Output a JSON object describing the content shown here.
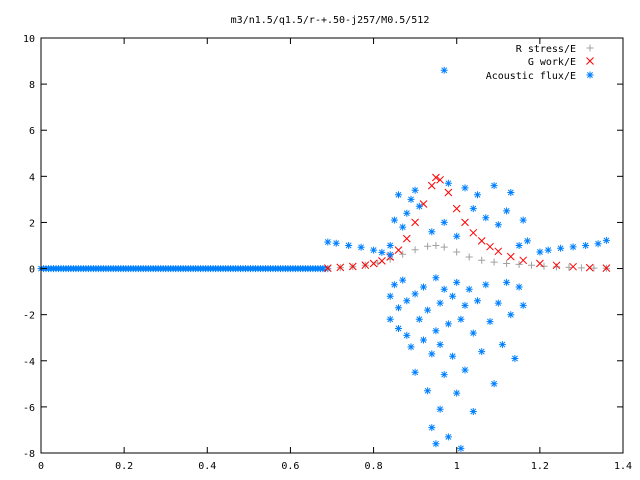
{
  "chart_data": {
    "type": "scatter",
    "title": "m3/n1.5/q1.5/r-+.50-j257/M0.5/512",
    "xlabel": "",
    "ylabel": "",
    "xlim": [
      0,
      1.4
    ],
    "ylim": [
      -8,
      10
    ],
    "x_ticks": [
      "0",
      "0.2",
      "0.4",
      "0.6",
      "0.8",
      "1",
      "1.2",
      "1.4"
    ],
    "y_ticks": [
      "10",
      "8",
      "6",
      "4",
      "2",
      "0",
      "-2",
      "-4",
      "-6",
      "-8"
    ],
    "grid": false,
    "legend_position": "top-right",
    "series": [
      {
        "name": "R stress/E",
        "marker": "+",
        "color": "#a0a0a0",
        "points": [
          [
            0.69,
            0.0
          ],
          [
            0.72,
            0.04
          ],
          [
            0.75,
            0.08
          ],
          [
            0.78,
            0.14
          ],
          [
            0.81,
            0.24
          ],
          [
            0.84,
            0.4
          ],
          [
            0.87,
            0.62
          ],
          [
            0.9,
            0.82
          ],
          [
            0.93,
            0.97
          ],
          [
            0.95,
            1.0
          ],
          [
            0.97,
            0.93
          ],
          [
            1.0,
            0.72
          ],
          [
            1.03,
            0.5
          ],
          [
            1.06,
            0.36
          ],
          [
            1.09,
            0.28
          ],
          [
            1.12,
            0.22
          ],
          [
            1.15,
            0.18
          ],
          [
            1.18,
            0.14
          ],
          [
            1.21,
            0.1
          ],
          [
            1.24,
            0.07
          ],
          [
            1.27,
            0.05
          ],
          [
            1.3,
            0.03
          ],
          [
            1.33,
            0.02
          ],
          [
            1.36,
            0.01
          ]
        ]
      },
      {
        "name": "G work/E",
        "marker": "x",
        "color": "#ff0000",
        "points": [
          [
            0.69,
            0.02
          ],
          [
            0.72,
            0.05
          ],
          [
            0.75,
            0.09
          ],
          [
            0.78,
            0.15
          ],
          [
            0.8,
            0.22
          ],
          [
            0.82,
            0.33
          ],
          [
            0.84,
            0.5
          ],
          [
            0.86,
            0.8
          ],
          [
            0.88,
            1.3
          ],
          [
            0.9,
            2.0
          ],
          [
            0.92,
            2.8
          ],
          [
            0.94,
            3.6
          ],
          [
            0.95,
            3.95
          ],
          [
            0.96,
            3.85
          ],
          [
            0.98,
            3.3
          ],
          [
            1.0,
            2.6
          ],
          [
            1.02,
            2.0
          ],
          [
            1.04,
            1.55
          ],
          [
            1.06,
            1.2
          ],
          [
            1.08,
            0.95
          ],
          [
            1.1,
            0.75
          ],
          [
            1.13,
            0.52
          ],
          [
            1.16,
            0.36
          ],
          [
            1.2,
            0.22
          ],
          [
            1.24,
            0.14
          ],
          [
            1.28,
            0.08
          ],
          [
            1.32,
            0.04
          ],
          [
            1.36,
            0.02
          ]
        ]
      },
      {
        "name": "Acoustic flux/E",
        "marker": "*",
        "color": "#0080ff",
        "baseline": {
          "x_from": 0.0,
          "x_to": 0.69,
          "y": 0.0
        },
        "points": [
          [
            0.69,
            1.15
          ],
          [
            0.71,
            1.1
          ],
          [
            0.74,
            1.0
          ],
          [
            0.77,
            0.92
          ],
          [
            0.8,
            0.8
          ],
          [
            0.82,
            0.7
          ],
          [
            0.84,
            0.6
          ],
          [
            1.2,
            0.72
          ],
          [
            1.22,
            0.8
          ],
          [
            1.25,
            0.88
          ],
          [
            1.28,
            0.94
          ],
          [
            1.31,
            1.0
          ],
          [
            1.34,
            1.08
          ],
          [
            1.36,
            1.22
          ],
          [
            0.84,
            1.0
          ],
          [
            0.85,
            2.1
          ],
          [
            0.86,
            3.2
          ],
          [
            0.87,
            1.8
          ],
          [
            0.88,
            2.4
          ],
          [
            0.89,
            3.0
          ],
          [
            0.9,
            3.4
          ],
          [
            0.91,
            2.7
          ],
          [
            0.94,
            1.6
          ],
          [
            0.97,
            2.0
          ],
          [
            0.98,
            3.7
          ],
          [
            1.0,
            1.4
          ],
          [
            1.02,
            3.5
          ],
          [
            1.04,
            2.6
          ],
          [
            1.05,
            3.2
          ],
          [
            1.07,
            2.2
          ],
          [
            1.09,
            3.6
          ],
          [
            1.1,
            1.9
          ],
          [
            1.12,
            2.5
          ],
          [
            1.13,
            3.3
          ],
          [
            1.15,
            1.0
          ],
          [
            1.16,
            2.1
          ],
          [
            1.17,
            1.2
          ],
          [
            0.97,
            8.6
          ],
          [
            0.84,
            -1.2
          ],
          [
            0.84,
            -2.2
          ],
          [
            0.85,
            -0.7
          ],
          [
            0.86,
            -1.7
          ],
          [
            0.86,
            -2.6
          ],
          [
            0.87,
            -0.5
          ],
          [
            0.88,
            -1.4
          ],
          [
            0.88,
            -2.9
          ],
          [
            0.89,
            -3.4
          ],
          [
            0.9,
            -1.1
          ],
          [
            0.9,
            -4.5
          ],
          [
            0.91,
            -2.2
          ],
          [
            0.92,
            -0.8
          ],
          [
            0.92,
            -3.1
          ],
          [
            0.93,
            -1.8
          ],
          [
            0.93,
            -5.3
          ],
          [
            0.94,
            -3.7
          ],
          [
            0.94,
            -6.9
          ],
          [
            0.95,
            -0.4
          ],
          [
            0.95,
            -2.7
          ],
          [
            0.95,
            -7.6
          ],
          [
            0.96,
            -1.5
          ],
          [
            0.96,
            -3.3
          ],
          [
            0.96,
            -6.1
          ],
          [
            0.97,
            -0.9
          ],
          [
            0.97,
            -4.6
          ],
          [
            0.98,
            -2.4
          ],
          [
            0.98,
            -7.3
          ],
          [
            0.99,
            -1.2
          ],
          [
            0.99,
            -3.8
          ],
          [
            1.0,
            -0.6
          ],
          [
            1.0,
            -5.4
          ],
          [
            1.01,
            -2.2
          ],
          [
            1.01,
            -7.8
          ],
          [
            1.02,
            -1.6
          ],
          [
            1.02,
            -4.4
          ],
          [
            1.03,
            -0.9
          ],
          [
            1.04,
            -2.8
          ],
          [
            1.04,
            -6.2
          ],
          [
            1.05,
            -1.4
          ],
          [
            1.06,
            -3.6
          ],
          [
            1.07,
            -0.7
          ],
          [
            1.08,
            -2.3
          ],
          [
            1.09,
            -5.0
          ],
          [
            1.1,
            -1.5
          ],
          [
            1.11,
            -3.3
          ],
          [
            1.12,
            -0.6
          ],
          [
            1.13,
            -2.0
          ],
          [
            1.14,
            -3.9
          ],
          [
            1.15,
            -0.8
          ],
          [
            1.16,
            -1.6
          ]
        ]
      }
    ]
  }
}
